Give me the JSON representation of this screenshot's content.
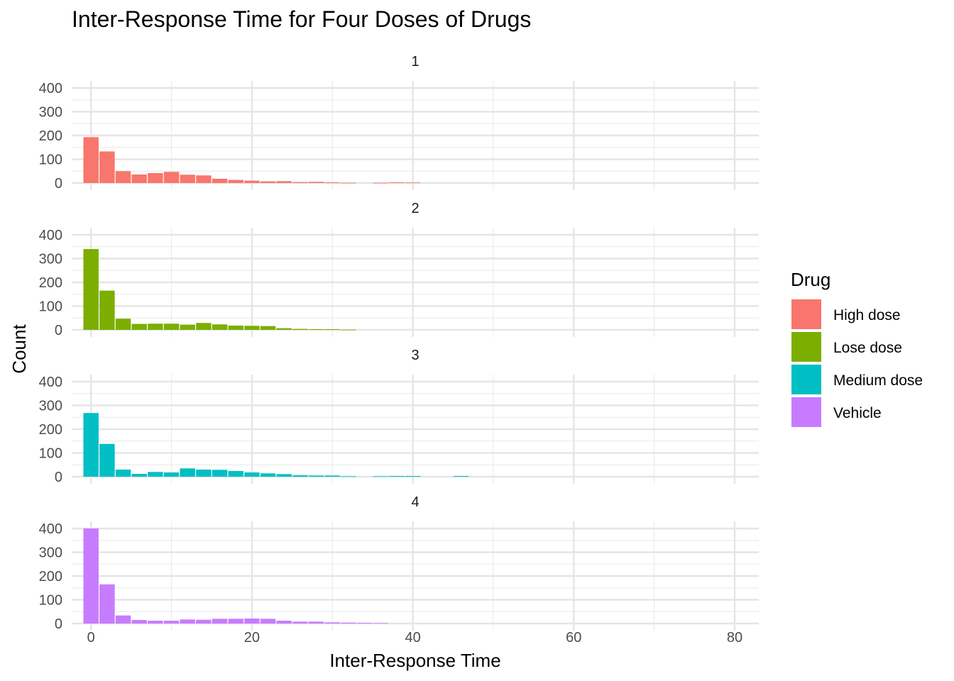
{
  "chart_data": {
    "type": "bar",
    "title": "Inter-Response Time for Four Doses of Drugs",
    "xlabel": "Inter-Response Time",
    "ylabel": "Count",
    "xlim": [
      -2.4,
      83
    ],
    "ylim": [
      0,
      400
    ],
    "x_ticks": [
      0,
      20,
      40,
      60,
      80
    ],
    "y_ticks": [
      0,
      100,
      200,
      300,
      400
    ],
    "bin_width": 2,
    "grid": true,
    "legend_position": "right",
    "legend_title": "Drug",
    "legend": [
      {
        "name": "High dose",
        "color": "#F8766D"
      },
      {
        "name": "Lose dose",
        "color": "#7CAE00"
      },
      {
        "name": "Medium dose",
        "color": "#00BFC4"
      },
      {
        "name": "Vehicle",
        "color": "#C77CFF"
      }
    ],
    "panels": [
      {
        "label": "1",
        "series": "High dose",
        "color": "#F8766D",
        "x": [
          0,
          2,
          4,
          6,
          8,
          10,
          12,
          14,
          16,
          18,
          20,
          22,
          24,
          26,
          28,
          30,
          32,
          34,
          36,
          38,
          40
        ],
        "values": [
          193,
          133,
          50,
          36,
          42,
          47,
          35,
          32,
          18,
          13,
          10,
          7,
          8,
          4,
          5,
          3,
          1,
          0,
          1,
          3,
          2
        ]
      },
      {
        "label": "2",
        "series": "Lose dose",
        "color": "#7CAE00",
        "x": [
          0,
          2,
          4,
          6,
          8,
          10,
          12,
          14,
          16,
          18,
          20,
          22,
          24,
          26,
          28,
          30,
          32
        ],
        "values": [
          340,
          165,
          47,
          25,
          26,
          26,
          22,
          29,
          23,
          18,
          17,
          16,
          7,
          4,
          3,
          3,
          1
        ]
      },
      {
        "label": "3",
        "series": "Medium dose",
        "color": "#00BFC4",
        "x": [
          0,
          2,
          4,
          6,
          8,
          10,
          12,
          14,
          16,
          18,
          20,
          22,
          24,
          26,
          28,
          30,
          32,
          34,
          36,
          38,
          40,
          42,
          44,
          46
        ],
        "values": [
          268,
          138,
          30,
          12,
          20,
          18,
          35,
          30,
          29,
          24,
          18,
          14,
          11,
          6,
          5,
          5,
          2,
          0,
          2,
          3,
          3,
          0,
          0,
          3
        ]
      },
      {
        "label": "4",
        "series": "Vehicle",
        "color": "#C77CFF",
        "x": [
          0,
          2,
          4,
          6,
          8,
          10,
          12,
          14,
          16,
          18,
          20,
          22,
          24,
          26,
          28,
          30,
          32,
          34,
          36
        ],
        "values": [
          400,
          165,
          34,
          15,
          12,
          12,
          17,
          16,
          20,
          20,
          21,
          20,
          12,
          8,
          8,
          5,
          4,
          3,
          2
        ]
      }
    ]
  }
}
